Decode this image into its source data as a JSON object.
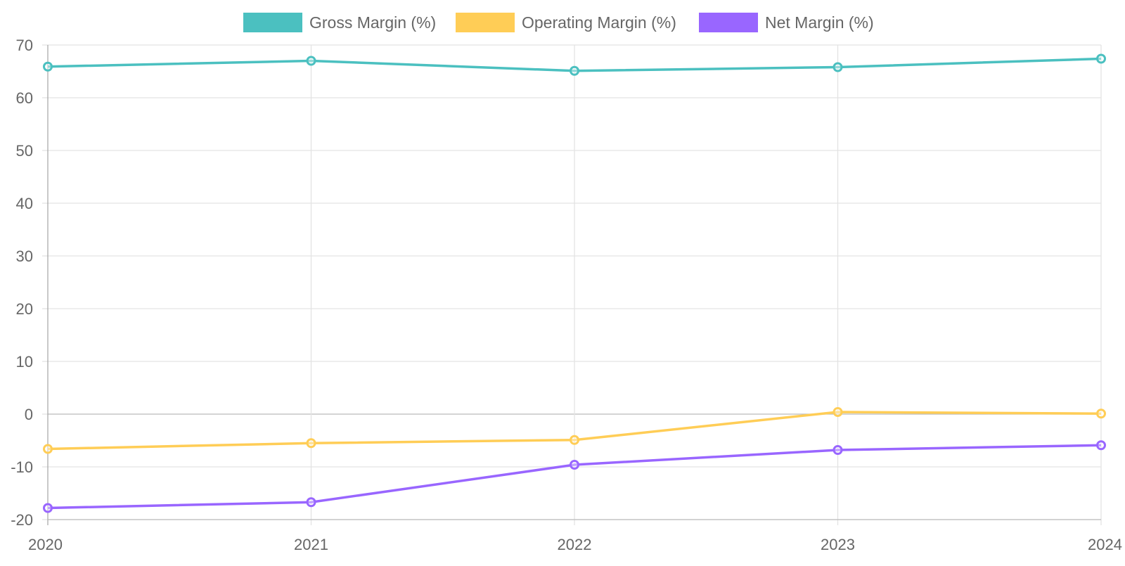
{
  "chart_data": {
    "type": "line",
    "title": "",
    "xlabel": "",
    "ylabel": "",
    "categories": [
      "2020",
      "2021",
      "2022",
      "2023",
      "2024"
    ],
    "ylim": [
      -20,
      70
    ],
    "yticks": [
      70,
      60,
      50,
      40,
      30,
      20,
      10,
      0,
      -10,
      -20
    ],
    "grid": true,
    "legend_position": "top-center",
    "series": [
      {
        "name": "Gross Margin (%)",
        "color": "#4bc0c0",
        "values": [
          65.9,
          67.0,
          65.1,
          65.8,
          67.4
        ]
      },
      {
        "name": "Operating Margin (%)",
        "color": "#ffcd56",
        "values": [
          -6.6,
          -5.5,
          -4.9,
          0.4,
          0.1
        ]
      },
      {
        "name": "Net Margin (%)",
        "color": "#9966ff",
        "values": [
          -17.8,
          -16.7,
          -9.6,
          -6.8,
          -5.9
        ]
      }
    ]
  }
}
